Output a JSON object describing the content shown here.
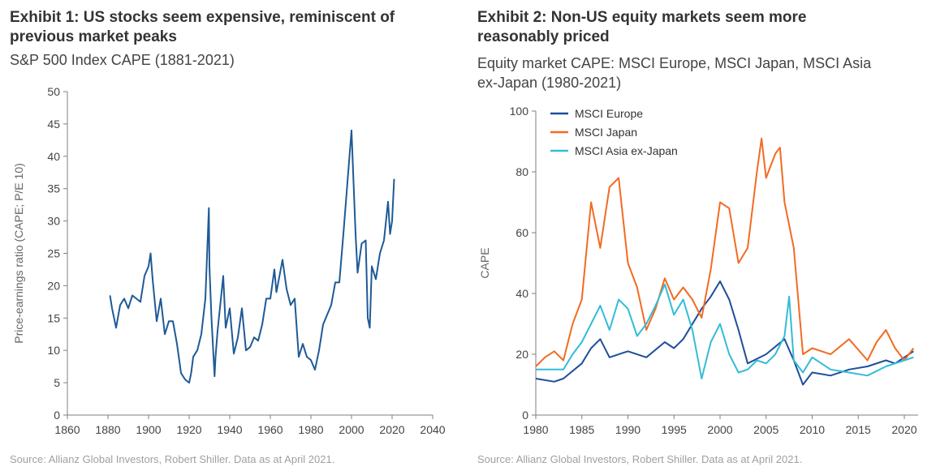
{
  "exhibit1": {
    "title": "Exhibit 1: US stocks seem expensive, reminiscent of previous market peaks",
    "subtitle": "S&P 500 Index CAPE (1881-2021)",
    "source": "Source: Allianz Global Investors, Robert Shiller. Data as at April 2021."
  },
  "exhibit2": {
    "title": "Exhibit 2: Non-US equity markets seem more reasonably priced",
    "subtitle": "Equity market CAPE: MSCI Europe, MSCI Japan, MSCI Asia ex-Japan (1980-2021)",
    "source": "Source: Allianz Global Investors, Robert Shiller. Data as at April 2021."
  },
  "colors": {
    "us": "#1f5a96",
    "europe": "#1f4e9c",
    "japan": "#f26b22",
    "asia": "#33bcd8",
    "axis": "#7f7f7f"
  },
  "chart_data": [
    {
      "type": "line",
      "title": "S&P 500 Index CAPE (1881-2021)",
      "xlabel": "",
      "ylabel": "Price-earnings ratio (CAPE; P/E 10)",
      "xlim": [
        1860,
        2040
      ],
      "ylim": [
        0,
        50
      ],
      "xticks": [
        1860,
        1880,
        1900,
        1920,
        1940,
        1960,
        1980,
        2000,
        2020,
        2040
      ],
      "yticks": [
        0,
        5,
        10,
        15,
        20,
        25,
        30,
        35,
        40,
        45,
        50
      ],
      "grid": false,
      "series": [
        {
          "name": "S&P 500 CAPE",
          "x": [
            1881,
            1882,
            1884,
            1886,
            1888,
            1890,
            1892,
            1894,
            1896,
            1898,
            1900,
            1901,
            1902,
            1904,
            1906,
            1908,
            1910,
            1912,
            1914,
            1916,
            1918,
            1920,
            1921,
            1922,
            1924,
            1926,
            1928,
            1929.7,
            1930,
            1931,
            1932.5,
            1933,
            1934,
            1936.8,
            1938,
            1940,
            1942,
            1944,
            1946,
            1948,
            1950,
            1952,
            1954,
            1956,
            1958,
            1960,
            1962,
            1963,
            1966,
            1968,
            1970,
            1972,
            1974,
            1976,
            1978,
            1980,
            1982,
            1984,
            1986,
            1988,
            1990,
            1992,
            1994,
            1996,
            1998,
            1999,
            2000,
            2001,
            2002,
            2003,
            2005,
            2007,
            2008,
            2009,
            2010,
            2012,
            2014,
            2016,
            2018,
            2019,
            2020,
            2021
          ],
          "y": [
            18.5,
            16.5,
            13.5,
            17,
            18,
            16.5,
            18.5,
            18,
            17.5,
            21.5,
            23,
            25,
            21,
            14.5,
            18,
            12.5,
            14.5,
            14.5,
            11,
            6.5,
            5.5,
            5,
            6.5,
            9,
            10,
            12.5,
            18,
            32,
            23,
            15,
            6,
            9,
            13,
            21.5,
            13.5,
            16.5,
            9.5,
            12,
            16.5,
            10,
            10.5,
            12,
            11.5,
            14,
            18,
            18,
            22.5,
            19,
            24,
            19.5,
            17,
            18,
            9,
            11,
            9,
            8.5,
            7,
            10,
            14,
            15.5,
            17,
            20.5,
            20.5,
            28,
            36,
            40,
            44,
            36,
            28,
            22,
            26.5,
            27,
            15,
            13.5,
            23,
            21,
            25,
            27,
            33,
            28,
            30,
            36.5
          ]
        }
      ]
    },
    {
      "type": "line",
      "title": "Equity market CAPE: MSCI Europe, MSCI Japan, MSCI Asia ex-Japan (1980-2021)",
      "xlabel": "",
      "ylabel": "CAPE",
      "xlim": [
        1980,
        2021.5
      ],
      "ylim": [
        0,
        100
      ],
      "xticks": [
        1980,
        1985,
        1990,
        1995,
        2000,
        2005,
        2010,
        2015,
        2020
      ],
      "yticks": [
        0,
        20,
        40,
        60,
        80,
        100
      ],
      "grid": false,
      "legend": "top-left",
      "series": [
        {
          "name": "MSCI Europe",
          "x": [
            1980,
            1982,
            1983,
            1985,
            1986,
            1987,
            1988,
            1990,
            1992,
            1994,
            1995,
            1996,
            1998,
            1999,
            2000,
            2001,
            2002,
            2003,
            2005,
            2007,
            2008,
            2009,
            2010,
            2012,
            2014,
            2016,
            2018,
            2019,
            2020,
            2021
          ],
          "y": [
            12,
            11,
            12,
            17,
            22,
            25,
            19,
            21,
            19,
            24,
            22,
            25,
            35,
            39,
            44,
            38,
            28,
            17,
            20,
            25,
            18,
            10,
            14,
            13,
            15,
            16,
            18,
            17,
            19,
            21
          ]
        },
        {
          "name": "MSCI Japan",
          "x": [
            1980,
            1981,
            1982,
            1983,
            1984,
            1985,
            1986,
            1987,
            1988,
            1989,
            1990,
            1991,
            1992,
            1993,
            1994,
            1995,
            1996,
            1997,
            1998,
            1999,
            2000,
            2001,
            2002,
            2003,
            2004,
            2004.5,
            2005,
            2006,
            2006.5,
            2007,
            2008,
            2009,
            2010,
            2012,
            2014,
            2016,
            2017,
            2018,
            2019,
            2020,
            2021
          ],
          "y": [
            16,
            19,
            21,
            18,
            30,
            38,
            70,
            55,
            75,
            78,
            50,
            42,
            28,
            35,
            45,
            38,
            42,
            38,
            32,
            48,
            70,
            68,
            50,
            55,
            80,
            91,
            78,
            86,
            88,
            70,
            55,
            20,
            22,
            20,
            25,
            18,
            24,
            28,
            22,
            18,
            22
          ]
        },
        {
          "name": "MSCI Asia ex-Japan",
          "x": [
            1980,
            1983,
            1984,
            1985,
            1986,
            1987,
            1988,
            1989,
            1990,
            1991,
            1992,
            1993,
            1994,
            1995,
            1996,
            1997,
            1998,
            1999,
            2000,
            2001,
            2002,
            2003,
            2004,
            2005,
            2006,
            2007,
            2007.5,
            2008,
            2009,
            2010,
            2012,
            2014,
            2016,
            2018,
            2020,
            2021
          ],
          "y": [
            15,
            15,
            20,
            24,
            30,
            36,
            28,
            38,
            35,
            26,
            30,
            36,
            43,
            33,
            38,
            28,
            12,
            24,
            30,
            20,
            14,
            15,
            18,
            17,
            20,
            26,
            39,
            18,
            14,
            19,
            15,
            14,
            13,
            16,
            18,
            19
          ]
        }
      ]
    }
  ]
}
